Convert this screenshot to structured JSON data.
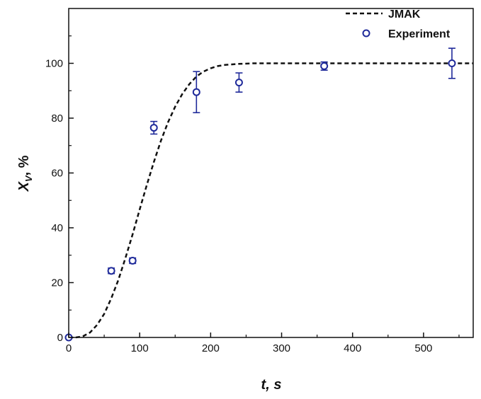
{
  "chart_data": {
    "type": "scatter",
    "xlabel": "t, s",
    "ylabel_main": "X",
    "ylabel_sub": "V",
    "ylabel_unit": ", %",
    "xlim": [
      0,
      570
    ],
    "ylim": [
      0,
      120
    ],
    "xticks": [
      0,
      100,
      200,
      300,
      400,
      500
    ],
    "yticks": [
      0,
      20,
      40,
      60,
      80,
      100
    ],
    "legend_position": "top-right",
    "colors": {
      "experiment": "#1f2a9a",
      "jmak": "#111111"
    },
    "series": [
      {
        "name": "JMAK",
        "style": "dashed-line",
        "x": [
          0,
          10,
          20,
          30,
          40,
          50,
          60,
          70,
          80,
          90,
          100,
          110,
          120,
          130,
          140,
          150,
          160,
          170,
          180,
          190,
          200,
          210,
          220,
          240,
          260,
          300,
          350,
          400,
          450,
          500,
          550,
          570
        ],
        "y": [
          0,
          0,
          0.4,
          1.8,
          4.6,
          8.6,
          14.3,
          21.0,
          29.0,
          37.6,
          46.7,
          55.6,
          64.0,
          71.8,
          78.5,
          84.2,
          88.8,
          92.4,
          95.2,
          97.0,
          98.2,
          99.0,
          99.4,
          99.8,
          100,
          100,
          100,
          100,
          100,
          100,
          100,
          100
        ]
      },
      {
        "name": "Experiment",
        "style": "open-circle-errorbar",
        "x": [
          0,
          60,
          90,
          120,
          180,
          240,
          360,
          540
        ],
        "y": [
          0,
          24.3,
          28.0,
          76.5,
          89.5,
          93.0,
          99.0,
          100.0
        ],
        "err": [
          0,
          1.0,
          1.0,
          2.3,
          7.5,
          3.5,
          1.5,
          5.5
        ]
      }
    ]
  }
}
